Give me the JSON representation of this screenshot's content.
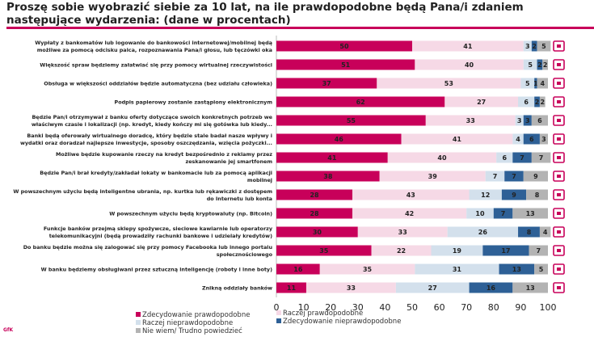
{
  "title": "Proszę sobie wyobrazić siebie za 10 lat, na ile prawdopodobne będą Pana/i zdaniem następujące wydarzenia: (dane w procentach)",
  "logo_text": "GfK",
  "chart_data": {
    "type": "bar",
    "orientation": "horizontal",
    "stacked": true,
    "title": "",
    "xlim": [
      0,
      100
    ],
    "xticks": [
      0,
      10,
      20,
      30,
      40,
      50,
      60,
      70,
      80,
      90,
      100
    ],
    "grid": false,
    "legend_position": "bottom",
    "categories": [
      "Wypłaty z bankomatów lub logowanie do bankowości internetowej/mobilnej będą\nmożliwe za pomocą odcisku palca, rozpoznawania Pana/i głosu, lub tęczówki oka",
      "Większość spraw będziemy załatwiać się przy pomocy wirtualnej rzeczywistości",
      "Obsługa w większości oddziałów będzie automatyczna (bez udziału człowieka)",
      "Podpis papierowy zostanie zastąpiony elektronicznym",
      "Będzie Pan/i otrzymywał z banku oferty dotyczące swoich konkretnych potrzeb we\nwłaściwym czasie i lokalizacji (np. kredyt, kiedy kończy mi się gotówka lub kiedy...",
      "Banki będą oferowały wirtualnego doradcę, który będzie stale badał nasze wpływy i\nwydatki oraz doradzał najlepsze inwestycje, sposoby oszczędzania, wzięcia pożyczki...",
      "Możliwe będzie kupowanie rzeczy na kredyt bezpośrednio z reklamy przez\nzeskanowanie jej smartfonem",
      "Będzie Pan/i brał kredyty/zakładał lokaty w bankomacie lub za pomocą aplikacji\nmobilnej",
      "W powszechnym użyciu będą inteligentne ubrania, np. kurtka lub rękawiczki z dostępem\ndo Internetu lub konta",
      "W powszechnym użyciu będą kryptowaluty (np. Bitcoin)",
      "Funkcje banków przejmą sklepy spożywcze, sieciowe kawiarnie lub operatorzy\ntelekomunikacyjni (będą prowadziły rachunki bankowe i udzielały kredytów)",
      "Do banku będzie można się zalogować się przy pomocy Facebooka lub innego portalu\nspołecznościowego",
      "W banku będziemy obsługiwani przez sztuczną inteligencję (roboty i inne boty)",
      "Znikną oddziały banków"
    ],
    "series": [
      {
        "name": "Zdecydowanie prawdopodobne",
        "color": "#c8005a",
        "values": [
          50,
          51,
          37,
          62,
          55,
          46,
          41,
          38,
          28,
          28,
          30,
          35,
          16,
          11
        ]
      },
      {
        "name": "Raczej prawdopodobne",
        "color": "#f6d9e6",
        "values": [
          41,
          40,
          53,
          27,
          33,
          41,
          40,
          39,
          43,
          42,
          33,
          22,
          35,
          33
        ]
      },
      {
        "name": "Raczej nieprawdopodobne",
        "color": "#d3e0ec",
        "values": [
          3,
          5,
          5,
          6,
          3,
          4,
          6,
          7,
          12,
          10,
          26,
          19,
          31,
          27
        ]
      },
      {
        "name": "Zdecydowanie nieprawdopodobne",
        "color": "#2e6096",
        "values": [
          2,
          2,
          1,
          2,
          3,
          6,
          7,
          7,
          9,
          7,
          8,
          17,
          13,
          16
        ]
      },
      {
        "name": "Nie wiem/ Trudno powiedzieć",
        "color": "#b3b3b3",
        "values": [
          5,
          2,
          4,
          2,
          6,
          3,
          7,
          9,
          8,
          13,
          4,
          7,
          5,
          13
        ]
      }
    ],
    "row_icons": [
      "safe-icon",
      "bank-icon",
      "bank-brain-icon",
      "signature-computer-icon",
      "location-pin-icon",
      "virtual-advisor-icon",
      "scan-ad-icon",
      "atm-app-icon",
      "smart-jacket-icon",
      "crypto-computer-icon",
      "bank-to-shops-icon",
      "social-login-icon",
      "ai-head-icon",
      "closed-bank-icon"
    ]
  }
}
